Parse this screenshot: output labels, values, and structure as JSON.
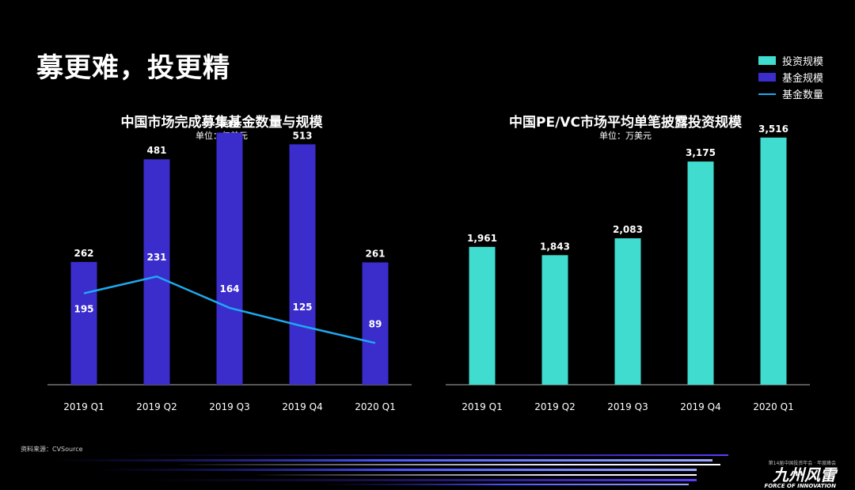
{
  "slide": {
    "title": "募更难，投更精",
    "source": "资料来源：CVSource"
  },
  "legend": {
    "items": [
      {
        "label": "投资规模",
        "color": "#40dccf",
        "kind": "bar"
      },
      {
        "label": "基金规模",
        "color": "#3b2ccc",
        "kind": "bar"
      },
      {
        "label": "基金数量",
        "color": "#1fa9ef",
        "kind": "line"
      }
    ]
  },
  "colors": {
    "fund_bar": "#3b2ccc",
    "invest_bar": "#40dccf",
    "count_line": "#1fa9ef",
    "axis": "#8c8c8c"
  },
  "footer": {
    "event_line": "第14届中国投资年会 · 年度峰会",
    "brand": "九州风雷",
    "brand_en": "FORCE OF INNOVATION"
  },
  "chart_data": [
    {
      "type": "bar",
      "title": "中国市场完成募集基金数量与规模",
      "unit": "单位：亿美元",
      "categories": [
        "2019 Q1",
        "2019 Q2",
        "2019 Q3",
        "2019 Q4",
        "2020 Q1"
      ],
      "series": [
        {
          "name": "基金规模",
          "type": "bar",
          "values": [
            262,
            481,
            538,
            513,
            261
          ]
        },
        {
          "name": "基金数量",
          "type": "line",
          "values": [
            195,
            231,
            164,
            125,
            89
          ]
        }
      ],
      "ylim": [
        0,
        600
      ]
    },
    {
      "type": "bar",
      "title": "中国PE/VC市场平均单笔披露投资规模",
      "unit": "单位：万美元",
      "categories": [
        "2019 Q1",
        "2019 Q2",
        "2019 Q3",
        "2019 Q4",
        "2020 Q1"
      ],
      "series": [
        {
          "name": "投资规模",
          "type": "bar",
          "values": [
            1961,
            1843,
            2083,
            3175,
            3516
          ]
        }
      ],
      "value_labels": [
        "1,961",
        "1,843",
        "2,083",
        "3,175",
        "3,516"
      ],
      "ylim": [
        0,
        4000
      ]
    }
  ]
}
